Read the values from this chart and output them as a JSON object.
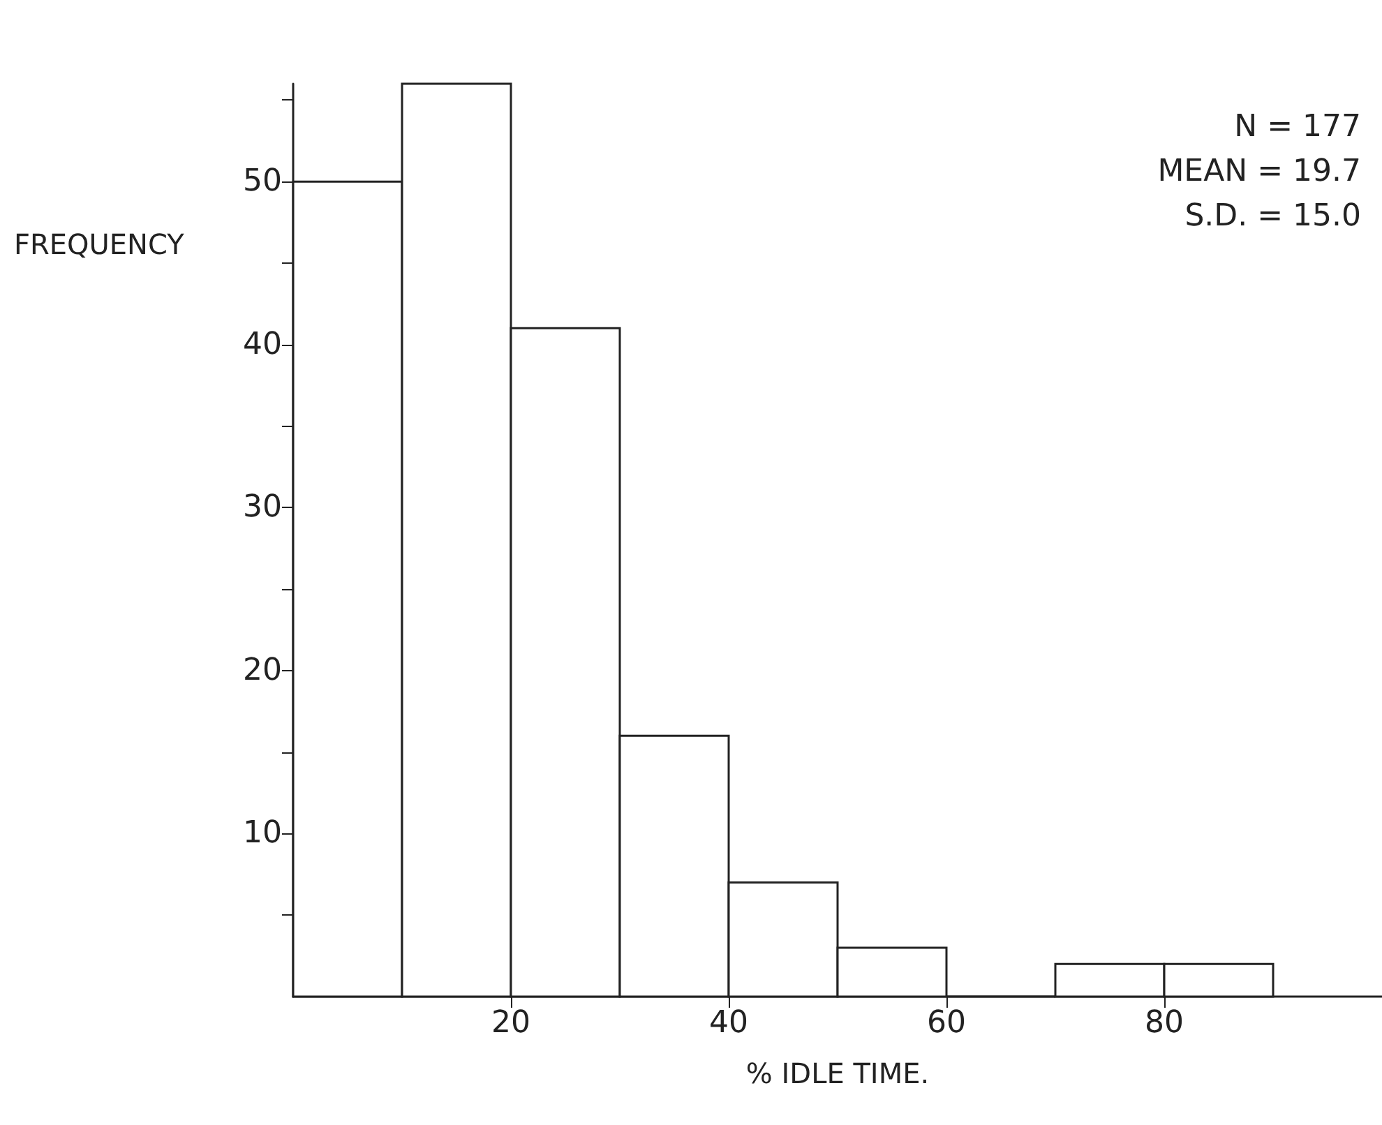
{
  "chart_data": {
    "type": "histogram",
    "xlabel": "% IDLE TIME.",
    "ylabel": "FREQUENCY",
    "bins": [
      0,
      10,
      20,
      30,
      40,
      50,
      60,
      70,
      80,
      90
    ],
    "values": [
      50,
      56,
      41,
      16,
      7,
      3,
      0,
      2,
      2
    ],
    "color": "#ffffff",
    "xlim": [
      0,
      100
    ],
    "xticks": [
      20,
      40,
      60,
      80
    ],
    "ylim": [
      0,
      56
    ],
    "yticks": [
      {
        "value": 5,
        "label": null
      },
      10,
      {
        "value": 15,
        "label": null
      },
      20,
      {
        "value": 25,
        "label": null
      },
      30,
      {
        "value": 35,
        "label": null
      },
      40,
      {
        "value": 45,
        "label": null
      },
      50,
      {
        "value": 55,
        "label": null
      }
    ],
    "annotations": [
      "N = 177",
      "MEAN = 19.7",
      "S.D. = 15.0"
    ],
    "grid": false
  }
}
